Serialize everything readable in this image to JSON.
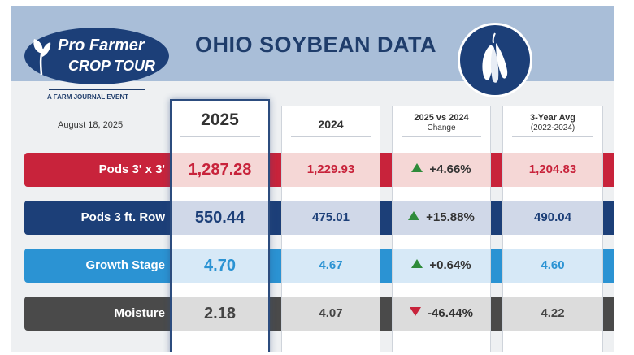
{
  "header": {
    "title": "OHIO SOYBEAN DATA",
    "logo_top": "Pro Farmer",
    "logo_bottom": "CROP TOUR",
    "logo_subtitle": "A FARM JOURNAL EVENT",
    "seal_icon": "soybean-pod-icon"
  },
  "date": "August 18, 2025",
  "columns": [
    {
      "label": "2025",
      "sublabel": ""
    },
    {
      "label": "2024",
      "sublabel": ""
    },
    {
      "label": "2025 vs 2024",
      "sublabel": "Change"
    },
    {
      "label": "3-Year Avg",
      "sublabel": "(2022-2024)"
    }
  ],
  "rows": [
    {
      "label": "Pods 3' x 3'",
      "color": "#c8233b",
      "tint": "#f5d7d6",
      "text_color": "#c8233b",
      "v2025": "1,287.28",
      "v2024": "1,229.93",
      "change": "+4.66%",
      "direction": "up",
      "avg": "1,204.83"
    },
    {
      "label": "Pods 3 ft. Row",
      "color": "#1c3f78",
      "tint": "#d0d8e8",
      "text_color": "#1c3f78",
      "v2025": "550.44",
      "v2024": "475.01",
      "change": "+15.88%",
      "direction": "up",
      "avg": "490.04"
    },
    {
      "label": "Growth Stage",
      "color": "#2b93d3",
      "tint": "#d7e9f7",
      "text_color": "#2b93d3",
      "v2025": "4.70",
      "v2024": "4.67",
      "change": "+0.64%",
      "direction": "up",
      "avg": "4.60"
    },
    {
      "label": "Moisture",
      "color": "#4a4a4a",
      "tint": "#dcdcdc",
      "text_color": "#444444",
      "v2025": "2.18",
      "v2024": "4.07",
      "change": "-46.44%",
      "direction": "down",
      "avg": "4.22"
    }
  ],
  "colors": {
    "header_bg": "#a9bed8",
    "title": "#1f3d6b",
    "up": "#2e8b3a",
    "down": "#c8233b"
  }
}
